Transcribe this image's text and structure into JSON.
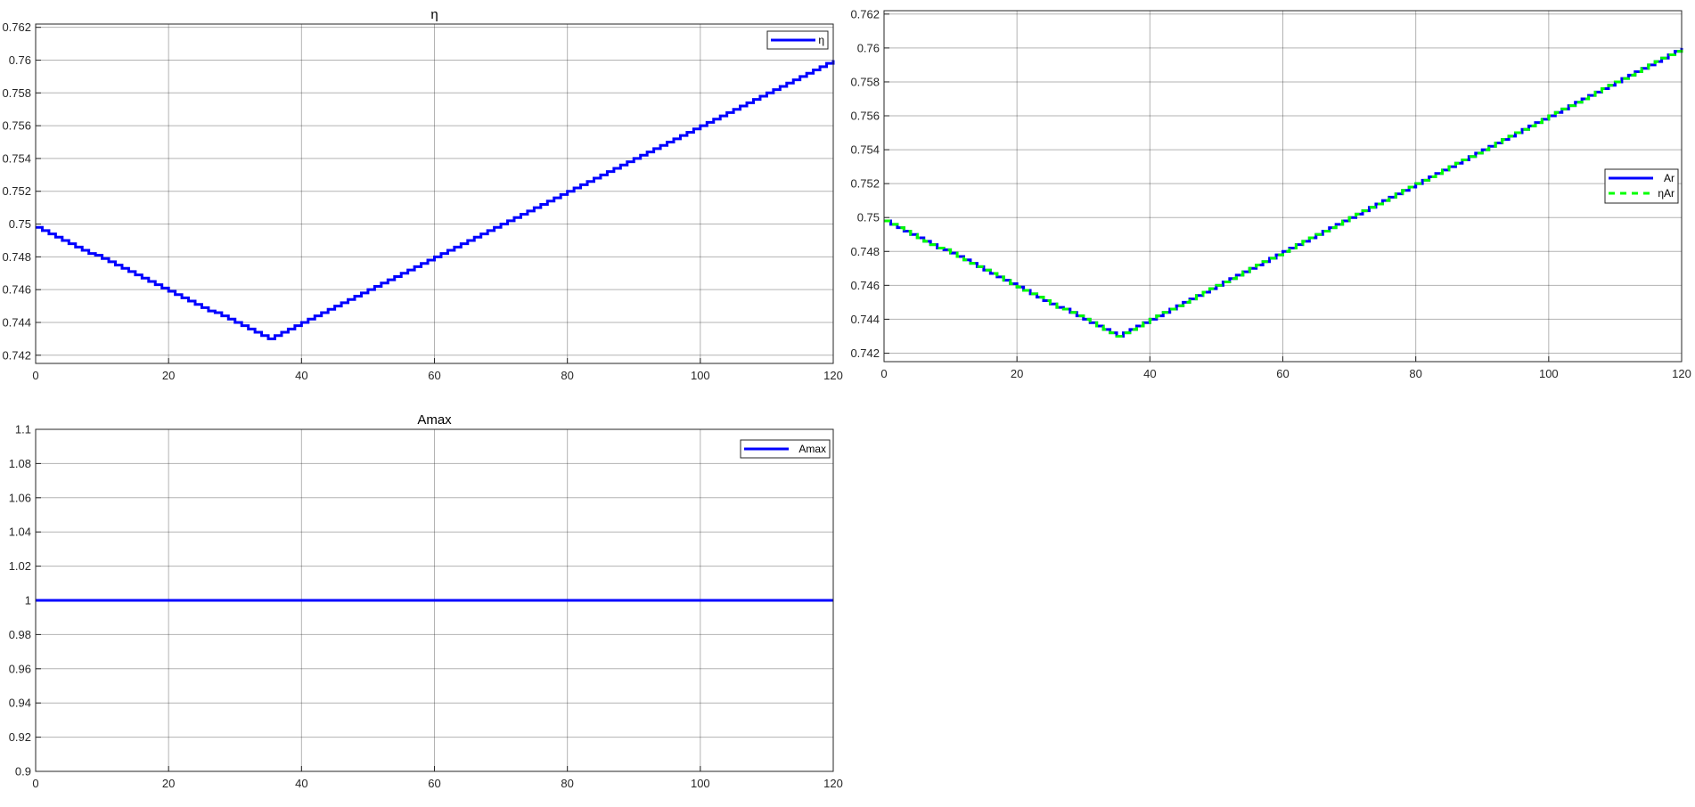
{
  "chart_data": [
    {
      "type": "line",
      "title": "η",
      "xlabel": "",
      "ylabel": "",
      "xlim": [
        0,
        120
      ],
      "ylim": [
        0.7415,
        0.7622
      ],
      "xticks": [
        0,
        20,
        40,
        60,
        80,
        100,
        120
      ],
      "xtick_labels": [
        "0",
        "20",
        "40",
        "60",
        "80",
        "100",
        "120"
      ],
      "yticks": [
        0.742,
        0.744,
        0.746,
        0.748,
        0.75,
        0.752,
        0.754,
        0.756,
        0.758,
        0.76,
        0.762
      ],
      "ytick_labels": [
        "0.742",
        "0.744",
        "0.746",
        "0.748",
        "0.75",
        "0.752",
        "0.754",
        "0.756",
        "0.758",
        "0.76",
        "0.762"
      ],
      "grid": true,
      "legend": {
        "position": "top-right"
      },
      "series": [
        {
          "name": "η",
          "color": "#0000ff",
          "style": "solid",
          "stairs": true,
          "points": [
            [
              0,
              0.7498
            ],
            [
              35,
              0.743
            ],
            [
              120,
              0.76
            ]
          ]
        }
      ]
    },
    {
      "type": "line",
      "title": "",
      "xlabel": "",
      "ylabel": "",
      "xlim": [
        0,
        120
      ],
      "ylim": [
        0.7415,
        0.7622
      ],
      "xticks": [
        0,
        20,
        40,
        60,
        80,
        100,
        120
      ],
      "xtick_labels": [
        "0",
        "20",
        "40",
        "60",
        "80",
        "100",
        "120"
      ],
      "yticks": [
        0.742,
        0.744,
        0.746,
        0.748,
        0.75,
        0.752,
        0.754,
        0.756,
        0.758,
        0.76,
        0.762
      ],
      "ytick_labels": [
        "0.742",
        "0.744",
        "0.746",
        "0.748",
        "0.75",
        "0.752",
        "0.754",
        "0.756",
        "0.758",
        "0.76",
        "0.762"
      ],
      "grid": true,
      "legend": {
        "position": "right"
      },
      "series": [
        {
          "name": "Ar",
          "color": "#0000ff",
          "style": "solid",
          "stairs": true,
          "points": [
            [
              0,
              0.7498
            ],
            [
              35,
              0.743
            ],
            [
              120,
              0.76
            ]
          ]
        },
        {
          "name": "ηAr",
          "color": "#00ff00",
          "style": "dashed",
          "stairs": true,
          "points": [
            [
              0,
              0.7498
            ],
            [
              35,
              0.743
            ],
            [
              120,
              0.76
            ]
          ]
        }
      ]
    },
    {
      "type": "line",
      "title": "Amax",
      "xlabel": "",
      "ylabel": "",
      "xlim": [
        0,
        120
      ],
      "ylim": [
        0.9,
        1.1
      ],
      "xticks": [
        0,
        20,
        40,
        60,
        80,
        100,
        120
      ],
      "xtick_labels": [
        "0",
        "20",
        "40",
        "60",
        "80",
        "100",
        "120"
      ],
      "yticks": [
        0.9,
        0.92,
        0.94,
        0.96,
        0.98,
        1,
        1.02,
        1.04,
        1.06,
        1.08,
        1.1
      ],
      "ytick_labels": [
        "0.9",
        "0.92",
        "0.94",
        "0.96",
        "0.98",
        "1",
        "1.02",
        "1.04",
        "1.06",
        "1.08",
        "1.1"
      ],
      "grid": true,
      "legend": {
        "position": "top-right"
      },
      "series": [
        {
          "name": "Amax",
          "color": "#0000ff",
          "style": "solid",
          "stairs": false,
          "points": [
            [
              0,
              1
            ],
            [
              120,
              1
            ]
          ]
        }
      ]
    }
  ]
}
